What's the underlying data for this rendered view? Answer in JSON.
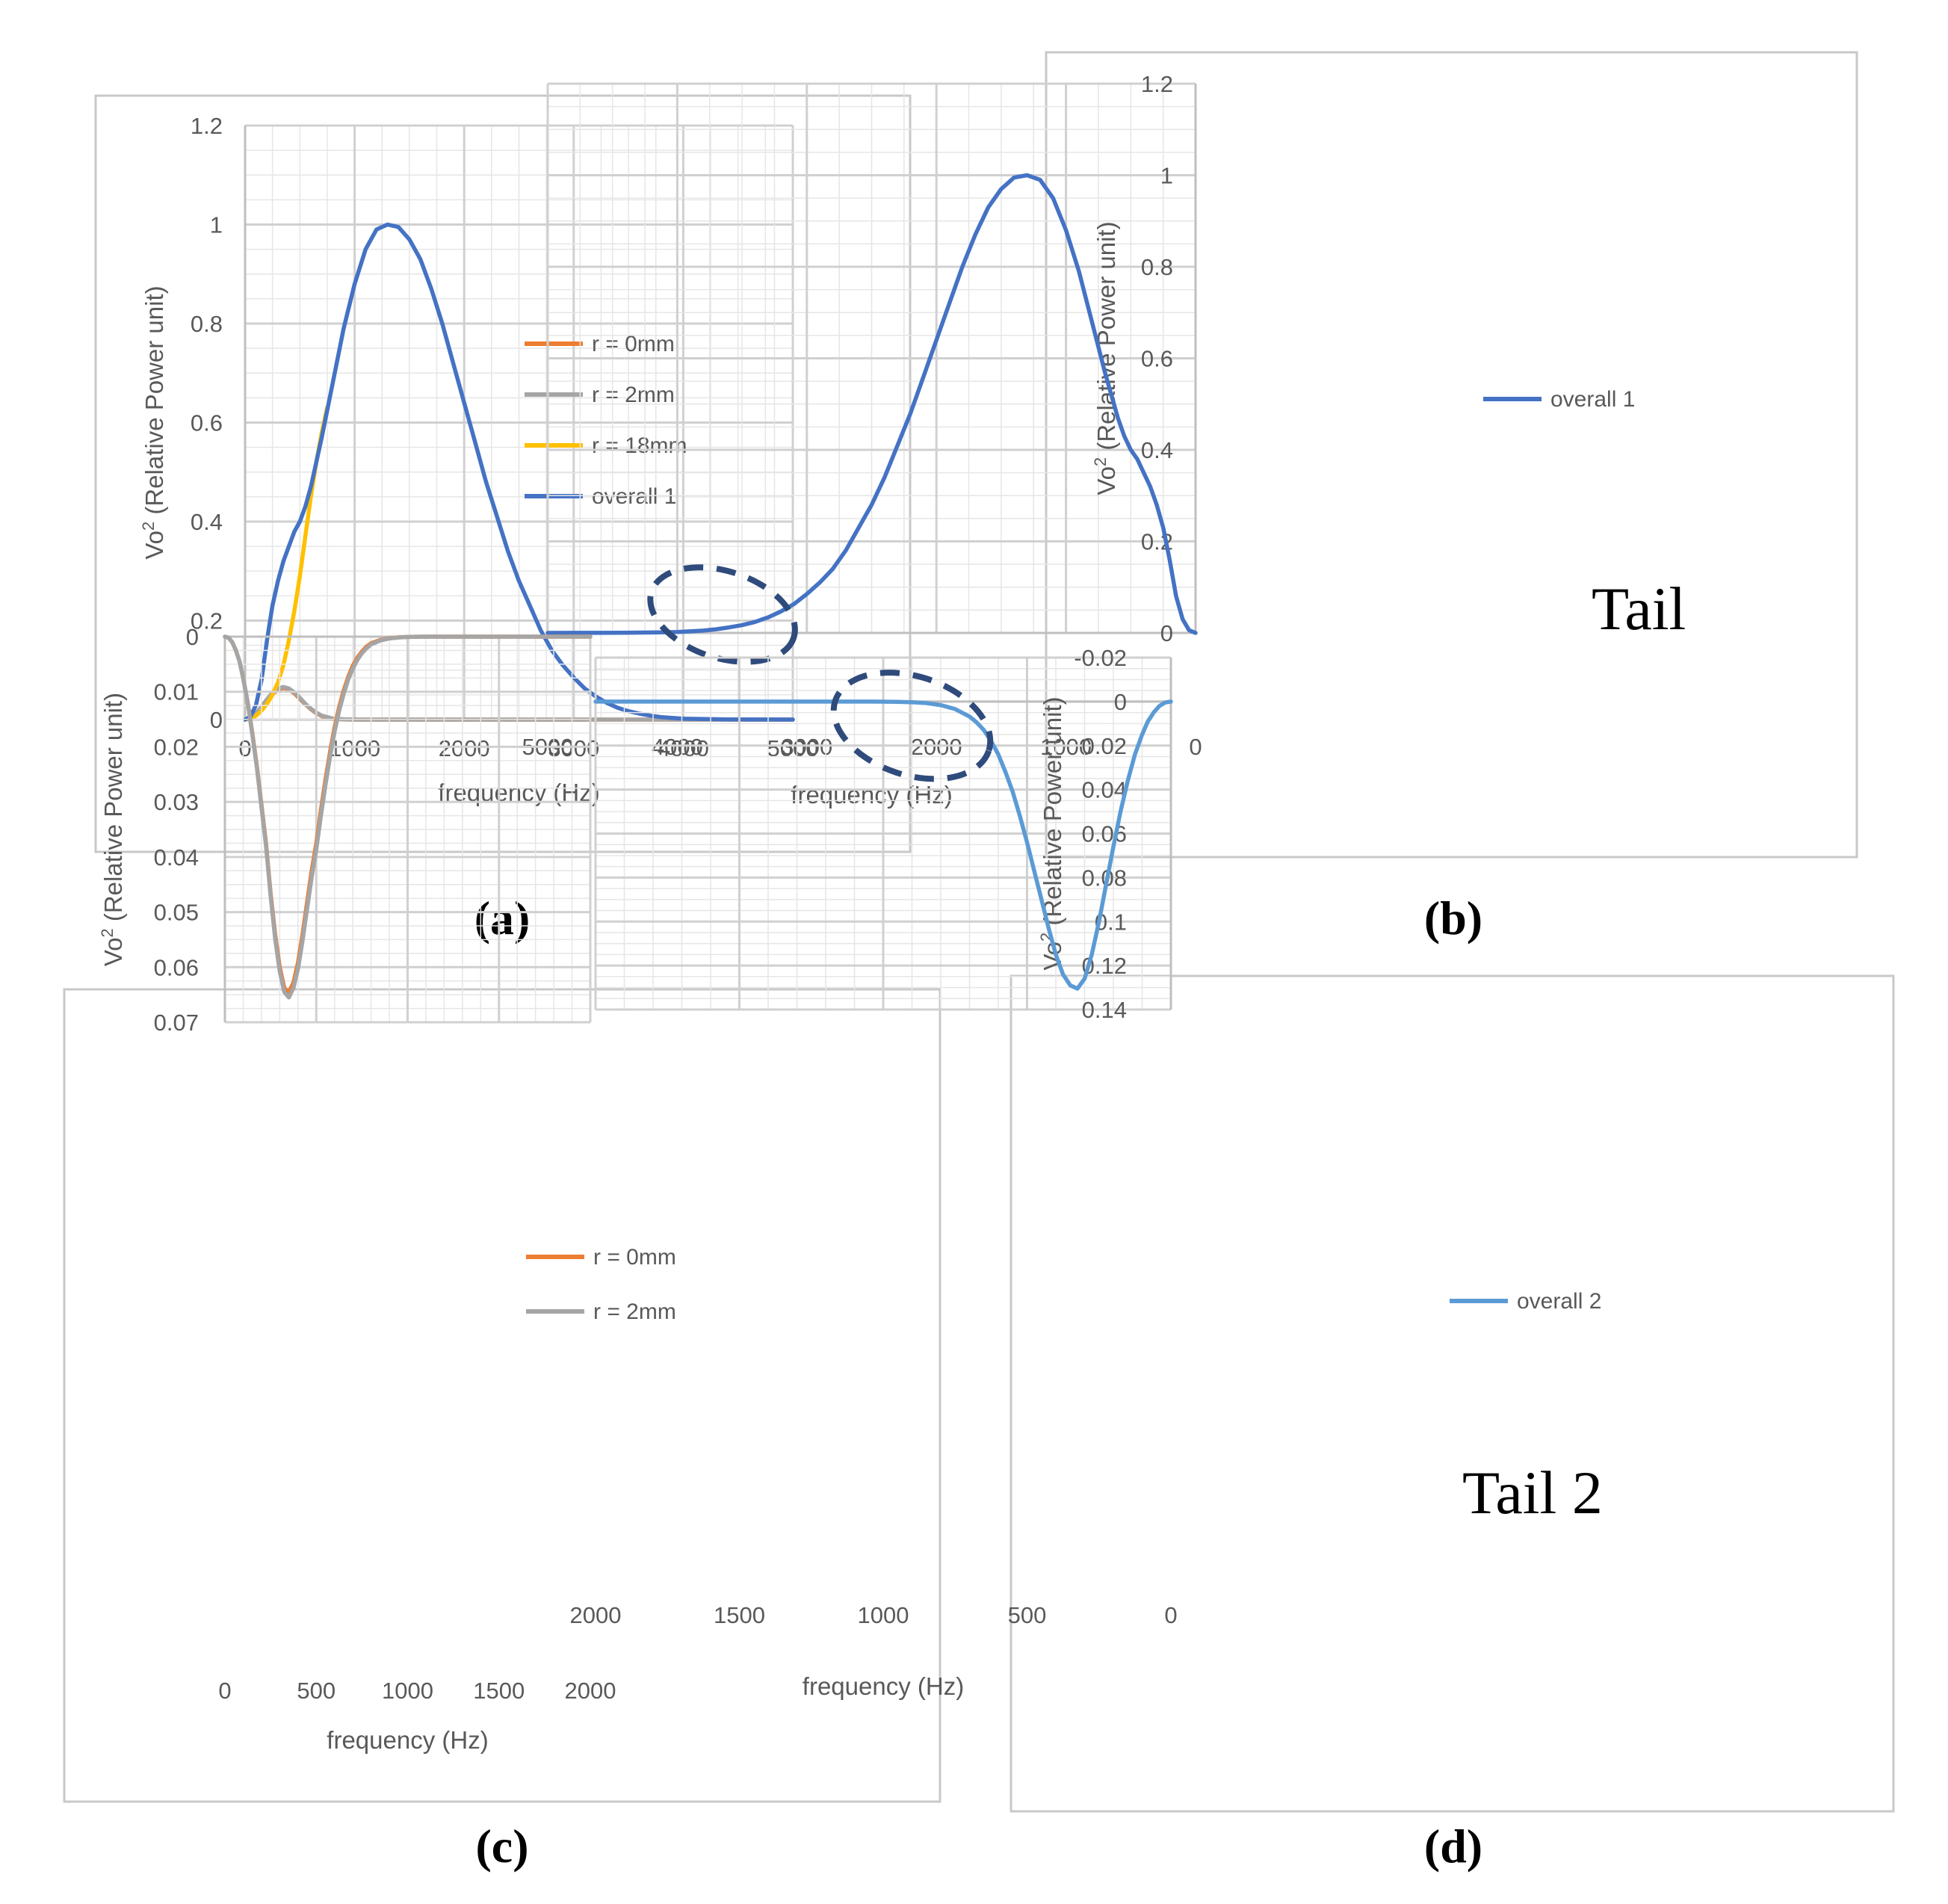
{
  "chart_data": [
    {
      "id": "a",
      "type": "line",
      "caption": "(a)",
      "xlabel": "frequency (Hz)",
      "ylabel": "Vo",
      "ylabel_sup": "2",
      "ylabel_rest": " (Relative Power unit)",
      "xlim": [
        0,
        5000
      ],
      "ylim": [
        0,
        1.2
      ],
      "xticks": [
        0,
        1000,
        2000,
        3000,
        4000,
        5000
      ],
      "xtick_labels": [
        "0",
        "1000",
        "2000",
        "3000",
        "4000",
        "5000"
      ],
      "yticks": [
        0,
        0.2,
        0.4,
        0.6,
        0.8,
        1,
        1.2
      ],
      "ytick_labels": [
        "0",
        "0.2",
        "0.4",
        "0.6",
        "0.8",
        "1",
        "1.2"
      ],
      "x_minor_step": 250,
      "y_minor_step": 0.05,
      "legend_position": "center-right",
      "series": [
        {
          "name": "r = 0mm",
          "color": "#ED7D31",
          "x": [
            0,
            50,
            100,
            150,
            200,
            250,
            300,
            350,
            400,
            450,
            500,
            550,
            600,
            650,
            700,
            800,
            900,
            1000,
            5000
          ],
          "y": [
            0,
            0.004,
            0.013,
            0.026,
            0.04,
            0.052,
            0.06,
            0.064,
            0.061,
            0.053,
            0.042,
            0.031,
            0.021,
            0.013,
            0.007,
            0.002,
            0.0005,
            0,
            0
          ]
        },
        {
          "name": "r = 2mm",
          "color": "#A5A5A5",
          "x": [
            0,
            50,
            100,
            150,
            200,
            250,
            300,
            350,
            400,
            450,
            500,
            550,
            600,
            650,
            700,
            800,
            900,
            1000,
            5000
          ],
          "y": [
            0,
            0.004,
            0.013,
            0.026,
            0.041,
            0.054,
            0.063,
            0.066,
            0.063,
            0.055,
            0.044,
            0.032,
            0.022,
            0.014,
            0.008,
            0.002,
            0.0006,
            0,
            0
          ]
        },
        {
          "name": "r = 18mm",
          "color": "#FFC000",
          "x": [
            0,
            50,
            100,
            150,
            200,
            250,
            300,
            350,
            400,
            450,
            500,
            550,
            600,
            650,
            700,
            750
          ],
          "y": [
            0,
            0.002,
            0.008,
            0.018,
            0.032,
            0.05,
            0.075,
            0.11,
            0.16,
            0.22,
            0.29,
            0.37,
            0.45,
            0.52,
            0.58,
            0.63
          ]
        },
        {
          "name": "overall 1",
          "color": "#4472C4",
          "x": [
            0,
            50,
            100,
            150,
            200,
            250,
            300,
            350,
            400,
            450,
            500,
            550,
            600,
            650,
            700,
            800,
            900,
            1000,
            1100,
            1200,
            1300,
            1400,
            1500,
            1600,
            1700,
            1800,
            1900,
            2000,
            2100,
            2200,
            2300,
            2400,
            2500,
            2600,
            2700,
            2800,
            2900,
            3000,
            3100,
            3200,
            3300,
            3400,
            3500,
            3600,
            3700,
            3800,
            3900,
            4000,
            4200,
            4400,
            4600,
            4800,
            5000
          ],
          "y": [
            0,
            0.006,
            0.03,
            0.08,
            0.16,
            0.23,
            0.28,
            0.32,
            0.35,
            0.38,
            0.4,
            0.43,
            0.47,
            0.52,
            0.57,
            0.68,
            0.79,
            0.88,
            0.95,
            0.99,
            1.0,
            0.995,
            0.97,
            0.93,
            0.87,
            0.8,
            0.72,
            0.64,
            0.56,
            0.48,
            0.41,
            0.34,
            0.28,
            0.23,
            0.18,
            0.14,
            0.11,
            0.085,
            0.063,
            0.047,
            0.034,
            0.024,
            0.017,
            0.012,
            0.008,
            0.005,
            0.0035,
            0.002,
            0.001,
            0.0004,
            0.0002,
            0.0001,
            0
          ]
        }
      ]
    },
    {
      "id": "b",
      "type": "line",
      "caption": "(b)",
      "xlabel": "frequency (Hz)",
      "ylabel": "Vo",
      "ylabel_sup": "2",
      "ylabel_rest": " (Relative Power unit)",
      "xlim": [
        0,
        5000
      ],
      "ylim": [
        0,
        1.2
      ],
      "xticks": [
        0,
        1000,
        2000,
        3000,
        4000,
        5000
      ],
      "xtick_labels": [
        "0",
        "1000",
        "2000",
        "3000",
        "4000",
        "5000"
      ],
      "yticks": [
        0,
        0.2,
        0.4,
        0.6,
        0.8,
        1,
        1.2
      ],
      "ytick_labels": [
        "0",
        "0.2",
        "0.4",
        "0.6",
        "0.8",
        "1",
        "1.2"
      ],
      "x_minor_step": 250,
      "y_minor_step": 0.05,
      "legend_position": "center-right",
      "annotation": {
        "text": "Tail",
        "cx": 3650,
        "cy": 0.04
      },
      "series": [
        {
          "name": "overall 1",
          "color": "#4472C4",
          "x": [
            0,
            50,
            100,
            150,
            200,
            250,
            300,
            350,
            400,
            450,
            500,
            550,
            600,
            650,
            700,
            800,
            900,
            1000,
            1100,
            1200,
            1300,
            1400,
            1500,
            1600,
            1700,
            1800,
            1900,
            2000,
            2100,
            2200,
            2300,
            2400,
            2500,
            2600,
            2700,
            2800,
            2900,
            3000,
            3100,
            3200,
            3300,
            3400,
            3500,
            3600,
            3700,
            3800,
            3900,
            4000,
            4200,
            4400,
            4600,
            4800,
            5000
          ],
          "y": [
            0,
            0.006,
            0.03,
            0.08,
            0.16,
            0.23,
            0.28,
            0.32,
            0.35,
            0.38,
            0.4,
            0.43,
            0.47,
            0.52,
            0.57,
            0.68,
            0.79,
            0.88,
            0.95,
            0.99,
            1.0,
            0.995,
            0.97,
            0.93,
            0.87,
            0.8,
            0.72,
            0.64,
            0.56,
            0.48,
            0.41,
            0.34,
            0.28,
            0.23,
            0.18,
            0.14,
            0.11,
            0.085,
            0.063,
            0.047,
            0.034,
            0.024,
            0.017,
            0.012,
            0.008,
            0.005,
            0.0035,
            0.002,
            0.001,
            0.0004,
            0.0002,
            0.0001,
            0
          ]
        }
      ]
    },
    {
      "id": "c",
      "type": "line",
      "caption": "(c)",
      "xlabel": "frequency (Hz)",
      "ylabel": "Vo",
      "ylabel_sup": "2",
      "ylabel_rest": " (Relative Power unit)",
      "xlim": [
        0,
        2000
      ],
      "ylim": [
        0,
        0.07
      ],
      "xticks": [
        0,
        500,
        1000,
        1500,
        2000
      ],
      "xtick_labels": [
        "0",
        "500",
        "1000",
        "1500",
        "2000"
      ],
      "yticks": [
        0,
        0.01,
        0.02,
        0.03,
        0.04,
        0.05,
        0.06,
        0.07
      ],
      "ytick_labels": [
        "0",
        "0.01",
        "0.02",
        "0.03",
        "0.04",
        "0.05",
        "0.06",
        "0.07"
      ],
      "x_minor_step": 100,
      "y_minor_step": 0.0025,
      "legend_position": "center-right",
      "series": [
        {
          "name": "r = 0mm",
          "color": "#ED7D31",
          "x": [
            0,
            20,
            40,
            60,
            80,
            100,
            125,
            150,
            175,
            200,
            225,
            250,
            275,
            300,
            325,
            350,
            375,
            400,
            425,
            450,
            475,
            500,
            525,
            550,
            575,
            600,
            625,
            650,
            675,
            700,
            725,
            750,
            775,
            800,
            850,
            900,
            950,
            1000,
            1050,
            1100,
            1200,
            2000
          ],
          "y": [
            0,
            0.0002,
            0.001,
            0.0025,
            0.0045,
            0.0075,
            0.012,
            0.0175,
            0.0235,
            0.0305,
            0.0375,
            0.0465,
            0.054,
            0.06,
            0.0638,
            0.0645,
            0.0628,
            0.0592,
            0.054,
            0.0482,
            0.0425,
            0.0375,
            0.0315,
            0.026,
            0.021,
            0.0165,
            0.0128,
            0.0098,
            0.0073,
            0.0053,
            0.0038,
            0.0027,
            0.0018,
            0.0012,
            0.0006,
            0.00028,
            0.00012,
            5e-05,
            2e-05,
            0,
            0,
            0
          ]
        },
        {
          "name": "r = 2mm",
          "color": "#A5A5A5",
          "x": [
            0,
            20,
            40,
            60,
            80,
            100,
            125,
            150,
            175,
            200,
            225,
            250,
            275,
            300,
            325,
            350,
            375,
            400,
            425,
            450,
            475,
            500,
            525,
            550,
            575,
            600,
            625,
            650,
            675,
            700,
            725,
            750,
            775,
            800,
            850,
            900,
            950,
            1000,
            1050,
            1100,
            1200,
            2000
          ],
          "y": [
            0,
            0.0002,
            0.001,
            0.0025,
            0.0045,
            0.0075,
            0.012,
            0.0178,
            0.0238,
            0.031,
            0.038,
            0.047,
            0.0548,
            0.0608,
            0.0645,
            0.0655,
            0.0638,
            0.0603,
            0.0552,
            0.0494,
            0.0437,
            0.0386,
            0.0326,
            0.027,
            0.0219,
            0.0173,
            0.0135,
            0.0104,
            0.0078,
            0.0058,
            0.0042,
            0.003,
            0.0021,
            0.0014,
            0.0007,
            0.00033,
            0.00015,
            6e-05,
            2e-05,
            0,
            0,
            0
          ]
        }
      ]
    },
    {
      "id": "d",
      "type": "line",
      "caption": "(d)",
      "xlabel": "frequency (Hz)",
      "ylabel": "Vo",
      "ylabel_sup": "2",
      "ylabel_rest": " (Relative Power unit)",
      "xlim": [
        0,
        2000
      ],
      "ylim": [
        -0.02,
        0.14
      ],
      "xticks": [
        0,
        500,
        1000,
        1500,
        2000
      ],
      "xtick_labels": [
        "0",
        "500",
        "1000",
        "1500",
        "2000"
      ],
      "yticks": [
        -0.02,
        0,
        0.02,
        0.04,
        0.06,
        0.08,
        0.1,
        0.12,
        0.14
      ],
      "ytick_labels": [
        "-0.02",
        "0",
        "0.02",
        "0.04",
        "0.06",
        "0.08",
        "0.1",
        "0.12",
        "0.14"
      ],
      "x_minor_step": 100,
      "y_minor_step": 0.005,
      "legend_position": "center-right",
      "annotation": {
        "text": "Tail 2",
        "cx": 900,
        "cy": 0.011
      },
      "series": [
        {
          "name": "overall 2",
          "color": "#5B9BD5",
          "x": [
            0,
            20,
            40,
            60,
            80,
            100,
            125,
            150,
            175,
            200,
            225,
            250,
            275,
            300,
            325,
            350,
            375,
            400,
            425,
            450,
            475,
            500,
            525,
            550,
            575,
            600,
            625,
            650,
            675,
            700,
            750,
            800,
            850,
            900,
            950,
            1000,
            1050,
            1100,
            1200,
            2000
          ],
          "y": [
            0,
            0.0004,
            0.002,
            0.005,
            0.009,
            0.015,
            0.024,
            0.036,
            0.05,
            0.066,
            0.083,
            0.1,
            0.115,
            0.126,
            0.1305,
            0.129,
            0.124,
            0.115,
            0.103,
            0.09,
            0.077,
            0.064,
            0.052,
            0.041,
            0.032,
            0.024,
            0.018,
            0.013,
            0.0095,
            0.0068,
            0.0034,
            0.0016,
            0.0007,
            0.0003,
            0.00012,
            5e-05,
            2e-05,
            0,
            0,
            0
          ]
        }
      ]
    }
  ]
}
